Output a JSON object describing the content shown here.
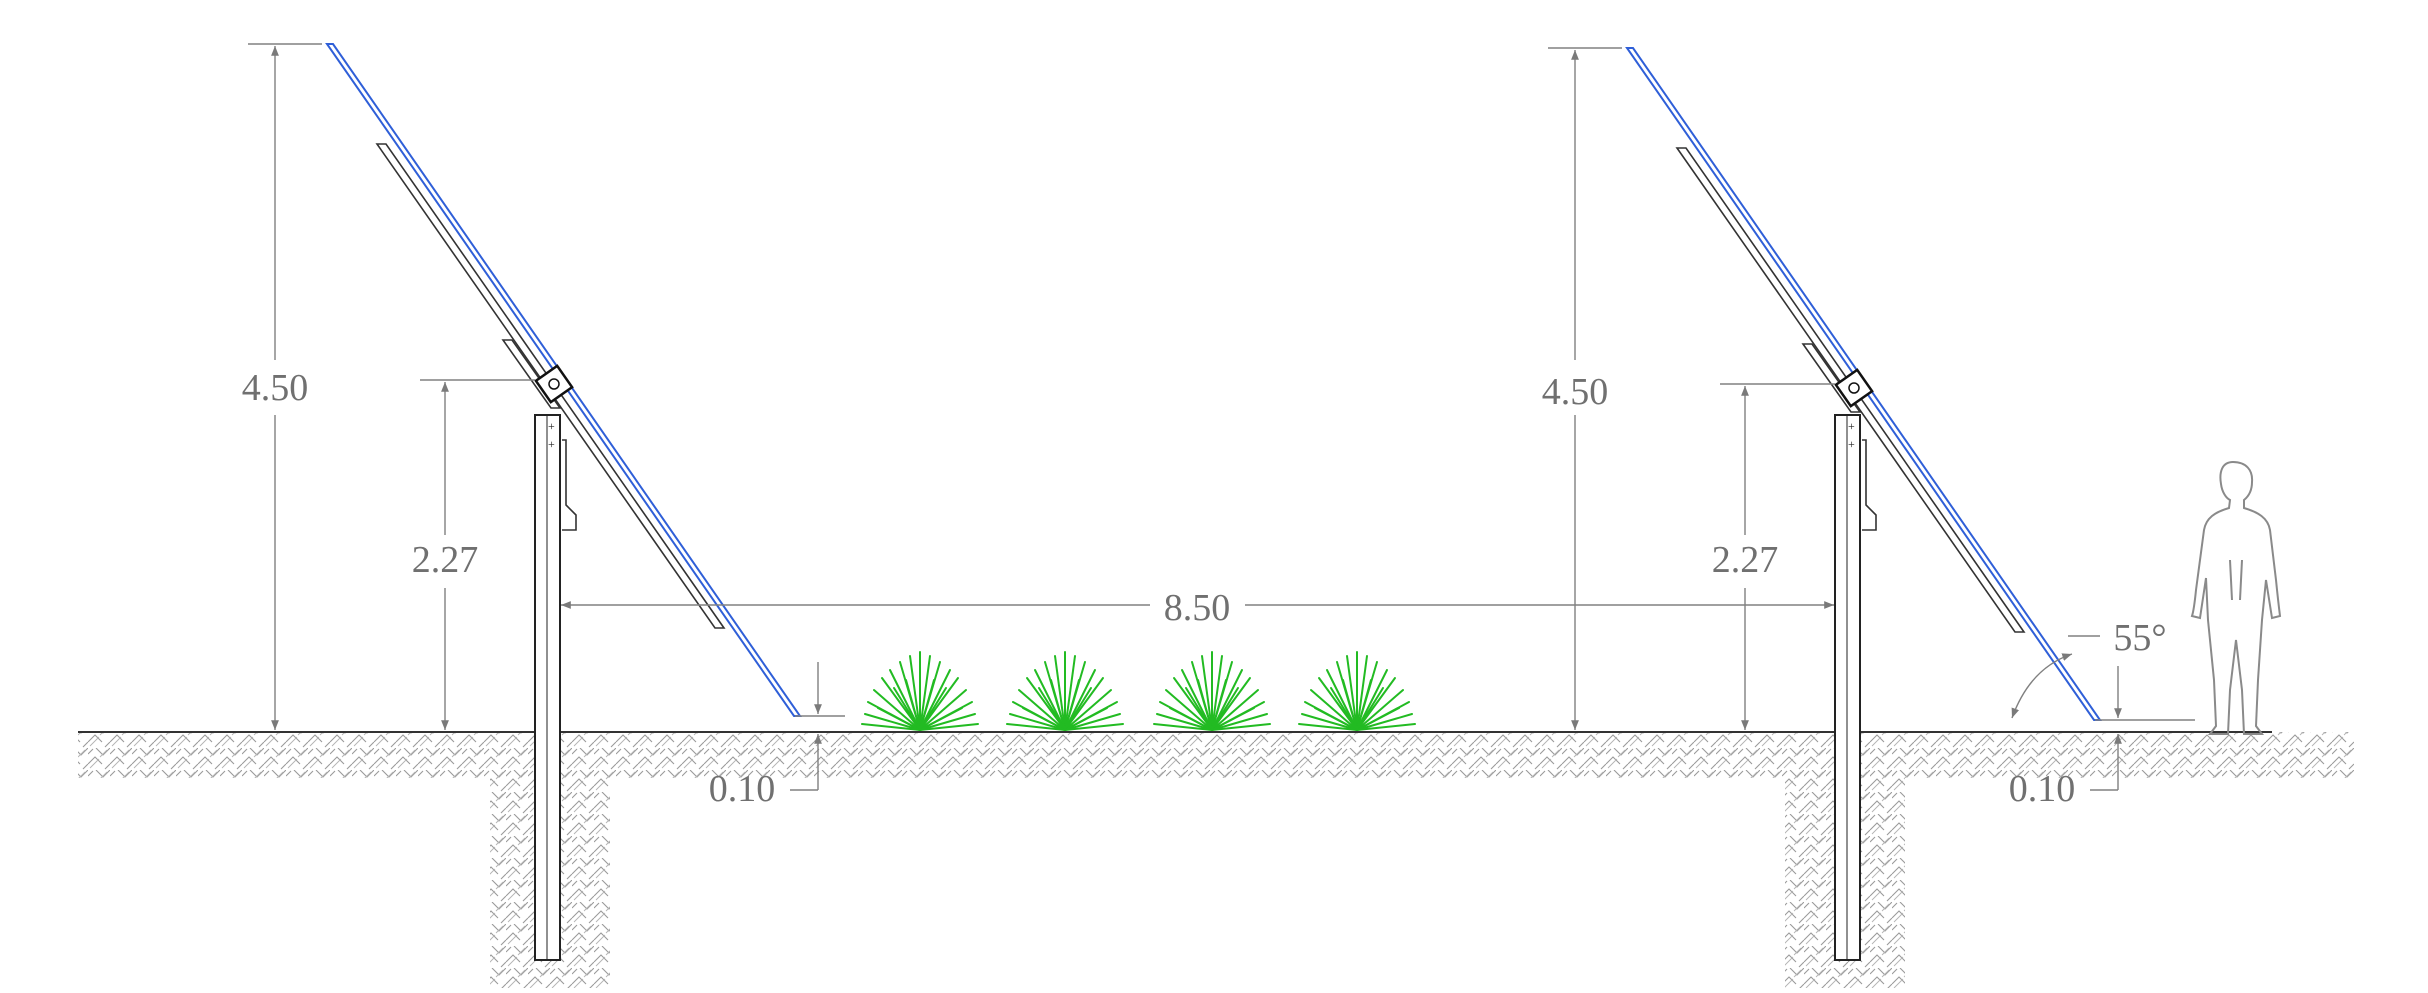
{
  "dimensions": {
    "left_height": "4.50",
    "left_pivot_height": "2.27",
    "row_spacing": "8.50",
    "left_clearance": "0.10",
    "right_height": "4.50",
    "right_pivot_height": "2.27",
    "right_clearance": "0.10",
    "tilt_angle": "55°"
  },
  "colors": {
    "panel_face": "#2f5fd8",
    "vegetation": "#22bb22",
    "dimension_line": "#808080",
    "structure": "#222222"
  },
  "icons": {
    "person": "person-silhouette-icon",
    "plant": "grass-tuft-icon"
  }
}
